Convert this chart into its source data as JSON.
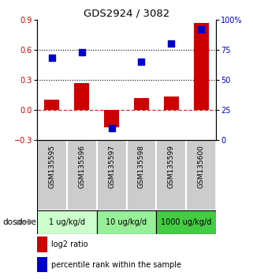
{
  "title": "GDS2924 / 3082",
  "samples": [
    "GSM135595",
    "GSM135596",
    "GSM135597",
    "GSM135598",
    "GSM135599",
    "GSM135600"
  ],
  "log2_ratio": [
    0.1,
    0.27,
    -0.17,
    0.12,
    0.13,
    0.87
  ],
  "percentile_rank": [
    68,
    73,
    10,
    65,
    80,
    92
  ],
  "bar_color": "#cc0000",
  "dot_color": "#0000cc",
  "ylim_left": [
    -0.3,
    0.9
  ],
  "ylim_right": [
    0,
    100
  ],
  "yticks_left": [
    -0.3,
    0.0,
    0.3,
    0.6,
    0.9
  ],
  "yticks_right": [
    0,
    25,
    50,
    75,
    100
  ],
  "hline_dotted": [
    0.3,
    0.6
  ],
  "hline_dashed": 0.0,
  "dose_groups": [
    {
      "label": "1 ug/kg/d",
      "cols": [
        0,
        1
      ],
      "color": "#ccffcc"
    },
    {
      "label": "10 ug/kg/d",
      "cols": [
        2,
        3
      ],
      "color": "#99ee99"
    },
    {
      "label": "1000 ug/kg/d",
      "cols": [
        4,
        5
      ],
      "color": "#44cc44"
    }
  ],
  "dose_label": "dose",
  "legend_bar_label": "log2 ratio",
  "legend_dot_label": "percentile rank within the sample",
  "x_positions": [
    0,
    1,
    2,
    3,
    4,
    5
  ],
  "bar_width": 0.5,
  "dot_size": 30,
  "sample_bg_color": "#cccccc",
  "sample_border_color": "#ffffff"
}
